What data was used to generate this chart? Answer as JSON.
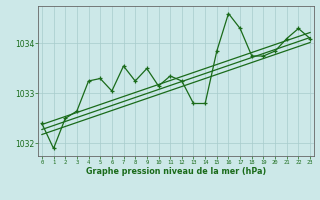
{
  "title": "Graphe pression niveau de la mer (hPa)",
  "background_color": "#cce8e8",
  "plot_bg_color": "#cce8e8",
  "line_color": "#1a6b1a",
  "grid_color": "#a8cccc",
  "x_values": [
    0,
    1,
    2,
    3,
    4,
    5,
    6,
    7,
    8,
    9,
    10,
    11,
    12,
    13,
    14,
    15,
    16,
    17,
    18,
    19,
    20,
    21,
    22,
    23
  ],
  "y_main": [
    1032.4,
    1031.9,
    1032.5,
    1032.65,
    1033.25,
    1033.3,
    1033.05,
    1033.55,
    1033.25,
    1033.5,
    1033.15,
    1033.35,
    1033.25,
    1032.8,
    1032.8,
    1033.85,
    1034.6,
    1034.3,
    1033.75,
    1033.75,
    1033.85,
    1034.1,
    1034.3,
    1034.1
  ],
  "trend_line1": [
    1032.18,
    1032.26,
    1032.34,
    1032.42,
    1032.5,
    1032.58,
    1032.66,
    1032.74,
    1032.82,
    1032.9,
    1032.98,
    1033.06,
    1033.14,
    1033.22,
    1033.3,
    1033.38,
    1033.46,
    1033.54,
    1033.62,
    1033.7,
    1033.78,
    1033.86,
    1033.94,
    1034.02
  ],
  "trend_line2": [
    1032.28,
    1032.36,
    1032.44,
    1032.52,
    1032.6,
    1032.68,
    1032.76,
    1032.84,
    1032.92,
    1033.0,
    1033.08,
    1033.16,
    1033.24,
    1033.32,
    1033.4,
    1033.48,
    1033.56,
    1033.64,
    1033.72,
    1033.8,
    1033.88,
    1033.96,
    1034.04,
    1034.12
  ],
  "trend_line3": [
    1032.38,
    1032.46,
    1032.54,
    1032.62,
    1032.7,
    1032.78,
    1032.86,
    1032.94,
    1033.02,
    1033.1,
    1033.18,
    1033.26,
    1033.34,
    1033.42,
    1033.5,
    1033.58,
    1033.66,
    1033.74,
    1033.82,
    1033.9,
    1033.98,
    1034.06,
    1034.14,
    1034.22
  ],
  "ylim": [
    1031.75,
    1034.75
  ],
  "yticks": [
    1032,
    1033,
    1034
  ],
  "xticks": [
    0,
    1,
    2,
    3,
    4,
    5,
    6,
    7,
    8,
    9,
    10,
    11,
    12,
    13,
    14,
    15,
    16,
    17,
    18,
    19,
    20,
    21,
    22,
    23
  ]
}
